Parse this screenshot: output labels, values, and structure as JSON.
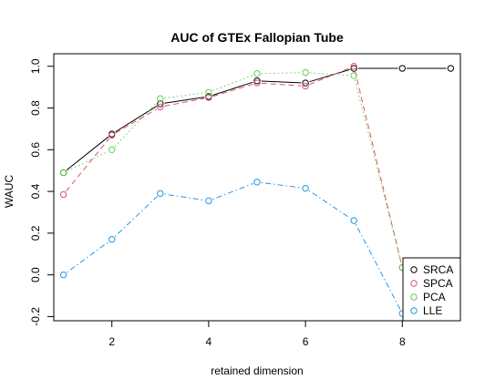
{
  "chart_data": {
    "type": "line",
    "title": "AUC of GTEx Fallopian Tube",
    "xlabel": "retained dimension",
    "ylabel": "WAUC",
    "xlim": [
      0.8,
      9.2
    ],
    "ylim": [
      -0.22,
      1.06
    ],
    "x_ticks": [
      2,
      4,
      6,
      8
    ],
    "y_ticks": [
      -0.2,
      0.0,
      0.2,
      0.4,
      0.6,
      0.8,
      1.0
    ],
    "y_tick_labels": [
      "-0.2",
      "0.0",
      "0.2",
      "0.4",
      "0.6",
      "0.8",
      "1.0"
    ],
    "legend_position": "bottom-right",
    "grid": false,
    "series": [
      {
        "name": "SRCA",
        "color": "#000000",
        "line": "solid",
        "x": [
          1,
          2,
          3,
          4,
          5,
          6,
          7,
          8,
          9
        ],
        "y": [
          0.49,
          0.675,
          0.82,
          0.855,
          0.93,
          0.92,
          0.99,
          0.99,
          0.99
        ]
      },
      {
        "name": "SPCA",
        "color": "#DF536B",
        "line": "dashed",
        "x": [
          1,
          2,
          3,
          4,
          5,
          6,
          7,
          8
        ],
        "y": [
          0.385,
          0.67,
          0.805,
          0.85,
          0.92,
          0.905,
          1.0,
          0.035
        ]
      },
      {
        "name": "PCA",
        "color": "#61D04F",
        "line": "dotted",
        "x": [
          1,
          2,
          3,
          4,
          5,
          6,
          7,
          8
        ],
        "y": [
          0.49,
          0.6,
          0.845,
          0.875,
          0.965,
          0.97,
          0.955,
          0.035
        ]
      },
      {
        "name": "LLE",
        "color": "#2297E6",
        "line": "dotdash",
        "x": [
          1,
          2,
          3,
          4,
          5,
          6,
          7,
          8
        ],
        "y": [
          0.0,
          0.17,
          0.39,
          0.355,
          0.445,
          0.415,
          0.26,
          -0.185
        ]
      }
    ]
  }
}
